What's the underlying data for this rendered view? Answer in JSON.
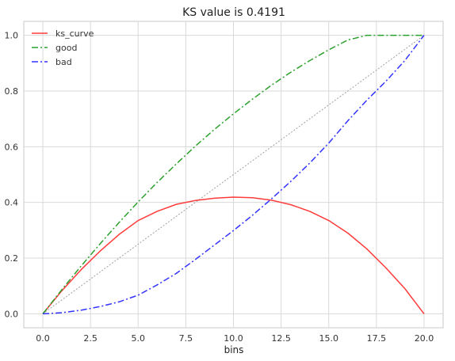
{
  "chart_data": {
    "type": "line",
    "title": "KS value is 0.4191",
    "xlabel": "bins",
    "ylabel": "",
    "xlim": [
      -1,
      21
    ],
    "ylim": [
      -0.05,
      1.05
    ],
    "xticks": [
      0.0,
      2.5,
      5.0,
      7.5,
      10.0,
      12.5,
      15.0,
      17.5,
      20.0
    ],
    "xtick_labels": [
      "0.0",
      "2.5",
      "5.0",
      "7.5",
      "10.0",
      "12.5",
      "15.0",
      "17.5",
      "20.0"
    ],
    "yticks": [
      0.0,
      0.2,
      0.4,
      0.6,
      0.8,
      1.0
    ],
    "ytick_labels": [
      "0.0",
      "0.2",
      "0.4",
      "0.6",
      "0.8",
      "1.0"
    ],
    "grid": true,
    "legend_position": "top-left",
    "x": [
      0,
      1,
      2,
      3,
      4,
      5,
      6,
      7,
      8,
      9,
      10,
      11,
      12,
      13,
      14,
      15,
      16,
      17,
      18,
      19,
      20
    ],
    "series": [
      {
        "name": "ks_curve",
        "color": "#ff3b3b",
        "dash": "solid",
        "values": [
          0.0,
          0.083,
          0.158,
          0.225,
          0.285,
          0.335,
          0.368,
          0.393,
          0.407,
          0.415,
          0.419,
          0.417,
          0.408,
          0.392,
          0.368,
          0.335,
          0.29,
          0.233,
          0.165,
          0.09,
          0.0
        ]
      },
      {
        "name": "good",
        "color": "#2ca02c",
        "dash": "dashdot",
        "values": [
          0.0,
          0.087,
          0.171,
          0.251,
          0.328,
          0.402,
          0.472,
          0.538,
          0.602,
          0.662,
          0.718,
          0.771,
          0.821,
          0.867,
          0.909,
          0.948,
          0.983,
          1.0,
          1.0,
          1.0,
          1.0
        ]
      },
      {
        "name": "bad",
        "color": "#3333ff",
        "dash": "dashdot",
        "values": [
          0.0,
          0.004,
          0.013,
          0.026,
          0.043,
          0.067,
          0.104,
          0.145,
          0.195,
          0.247,
          0.299,
          0.354,
          0.413,
          0.475,
          0.541,
          0.613,
          0.693,
          0.767,
          0.835,
          0.91,
          1.0
        ]
      }
    ],
    "reference_line": {
      "color": "#a0a0a0",
      "dash": "dotted",
      "x": [
        0,
        20
      ],
      "y": [
        0,
        1
      ]
    }
  }
}
